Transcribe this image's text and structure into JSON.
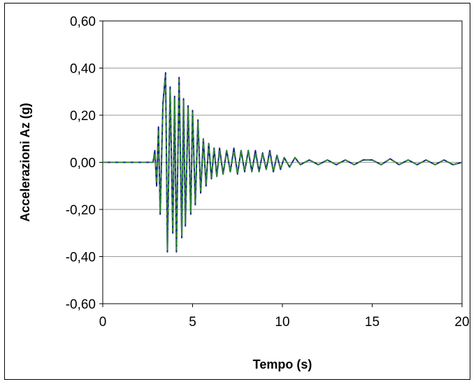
{
  "chart_data": {
    "type": "line",
    "title": "",
    "xlabel": "Tempo (s)",
    "ylabel": "Accelerazioni Az (g)",
    "xlim": [
      0,
      20
    ],
    "ylim": [
      -0.6,
      0.6
    ],
    "x_ticks": [
      0,
      5,
      10,
      15,
      20
    ],
    "x_tick_labels": [
      "0",
      "5",
      "10",
      "15",
      "20"
    ],
    "y_ticks": [
      -0.6,
      -0.4,
      -0.2,
      0.0,
      0.2,
      0.4,
      0.6
    ],
    "y_tick_labels": [
      "-0,60",
      "-0,40",
      "-0,20",
      "0,00",
      "0,20",
      "0,40",
      "0,60"
    ],
    "grid": "horizontal",
    "legend": "none",
    "series": [
      {
        "color": "#1f1f8f",
        "style": "solid",
        "x": [
          0,
          2.8,
          2.9,
          3.0,
          3.1,
          3.2,
          3.35,
          3.5,
          3.6,
          3.75,
          3.9,
          4.0,
          4.1,
          4.25,
          4.4,
          4.5,
          4.6,
          4.75,
          4.9,
          5.0,
          5.15,
          5.3,
          5.45,
          5.6,
          5.75,
          5.9,
          6.05,
          6.2,
          6.35,
          6.5,
          6.7,
          6.9,
          7.1,
          7.3,
          7.5,
          7.7,
          7.9,
          8.1,
          8.3,
          8.5,
          8.7,
          8.9,
          9.1,
          9.3,
          9.5,
          9.7,
          9.9,
          10.1,
          10.4,
          10.7,
          11.0,
          11.5,
          12.0,
          12.5,
          13.0,
          13.5,
          14.0,
          14.5,
          15.0,
          15.5,
          16.0,
          16.5,
          17.0,
          17.5,
          18.0,
          18.5,
          19.0,
          19.5,
          20.0
        ],
        "y": [
          0.0,
          0.0,
          0.05,
          -0.1,
          0.15,
          -0.22,
          0.25,
          0.38,
          -0.38,
          0.32,
          -0.3,
          0.28,
          -0.38,
          0.36,
          -0.32,
          0.27,
          -0.27,
          0.24,
          -0.22,
          0.22,
          -0.18,
          0.18,
          -0.13,
          0.1,
          -0.1,
          0.08,
          -0.07,
          0.06,
          -0.06,
          0.06,
          -0.05,
          0.05,
          -0.04,
          0.06,
          -0.05,
          0.05,
          -0.04,
          0.05,
          -0.04,
          0.05,
          -0.04,
          0.04,
          -0.03,
          0.05,
          -0.04,
          0.03,
          -0.03,
          0.02,
          -0.02,
          0.02,
          -0.01,
          0.01,
          -0.01,
          0.01,
          -0.01,
          0.01,
          -0.01,
          0.01,
          0.01,
          -0.01,
          0.015,
          -0.01,
          0.01,
          -0.01,
          0.01,
          -0.01,
          0.01,
          -0.01,
          0.0
        ]
      },
      {
        "color": "#2e8b2e",
        "style": "dashed",
        "x": [
          0,
          2.8,
          2.9,
          3.0,
          3.1,
          3.2,
          3.35,
          3.5,
          3.6,
          3.75,
          3.9,
          4.0,
          4.1,
          4.25,
          4.4,
          4.5,
          4.6,
          4.75,
          4.9,
          5.0,
          5.15,
          5.3,
          5.45,
          5.6,
          5.75,
          5.9,
          6.05,
          6.2,
          6.35,
          6.5,
          6.7,
          6.9,
          7.1,
          7.3,
          7.5,
          7.7,
          7.9,
          8.1,
          8.3,
          8.5,
          8.7,
          8.9,
          9.1,
          9.3,
          9.5,
          9.7,
          9.9,
          10.1,
          10.4,
          10.7,
          11.0,
          11.5,
          12.0,
          12.5,
          13.0,
          13.5,
          14.0,
          14.5,
          15.0,
          15.5,
          16.0,
          16.5,
          17.0,
          17.5,
          18.0,
          18.5,
          19.0,
          19.5,
          20.0
        ],
        "y": [
          0.0,
          0.0,
          0.04,
          -0.09,
          0.14,
          -0.21,
          0.24,
          0.37,
          -0.37,
          0.31,
          -0.29,
          0.27,
          -0.37,
          0.35,
          -0.31,
          0.26,
          -0.26,
          0.23,
          -0.21,
          0.21,
          -0.17,
          0.17,
          -0.12,
          0.1,
          -0.09,
          0.08,
          -0.07,
          0.06,
          -0.06,
          0.05,
          -0.05,
          0.05,
          -0.04,
          0.05,
          -0.05,
          0.05,
          -0.04,
          0.05,
          -0.04,
          0.04,
          -0.04,
          0.04,
          -0.03,
          0.04,
          -0.04,
          0.03,
          -0.03,
          0.02,
          -0.02,
          0.02,
          -0.01,
          0.01,
          -0.01,
          0.01,
          -0.01,
          0.01,
          -0.01,
          0.01,
          0.01,
          -0.01,
          0.015,
          -0.01,
          0.01,
          -0.01,
          0.01,
          -0.01,
          0.01,
          -0.01,
          0.0
        ]
      }
    ]
  }
}
